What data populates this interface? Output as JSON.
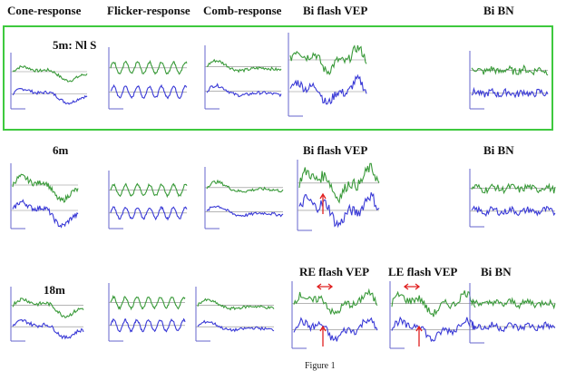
{
  "headers": {
    "cone": "Cone-response",
    "flicker": "Flicker-response",
    "comb": "Comb-response",
    "vep": "Bi flash VEP",
    "bn": "Bi BN"
  },
  "rows": [
    {
      "age": "5m: Nl S",
      "vep_label": "",
      "bn_label": ""
    },
    {
      "age": "6m",
      "vep_label": "Bi flash VEP",
      "bn_label": "Bi BN"
    },
    {
      "age": "18m",
      "re_label": "RE flash VEP",
      "le_label": "LE flash VEP",
      "bn_label": "Bi BN"
    }
  ],
  "colors": {
    "green": "#3a9a3a",
    "blue": "#3a3ad6",
    "box": "#3ec93e",
    "arrow": "#e02020",
    "axis": "#6666cc"
  },
  "caption": "Figure 1"
}
